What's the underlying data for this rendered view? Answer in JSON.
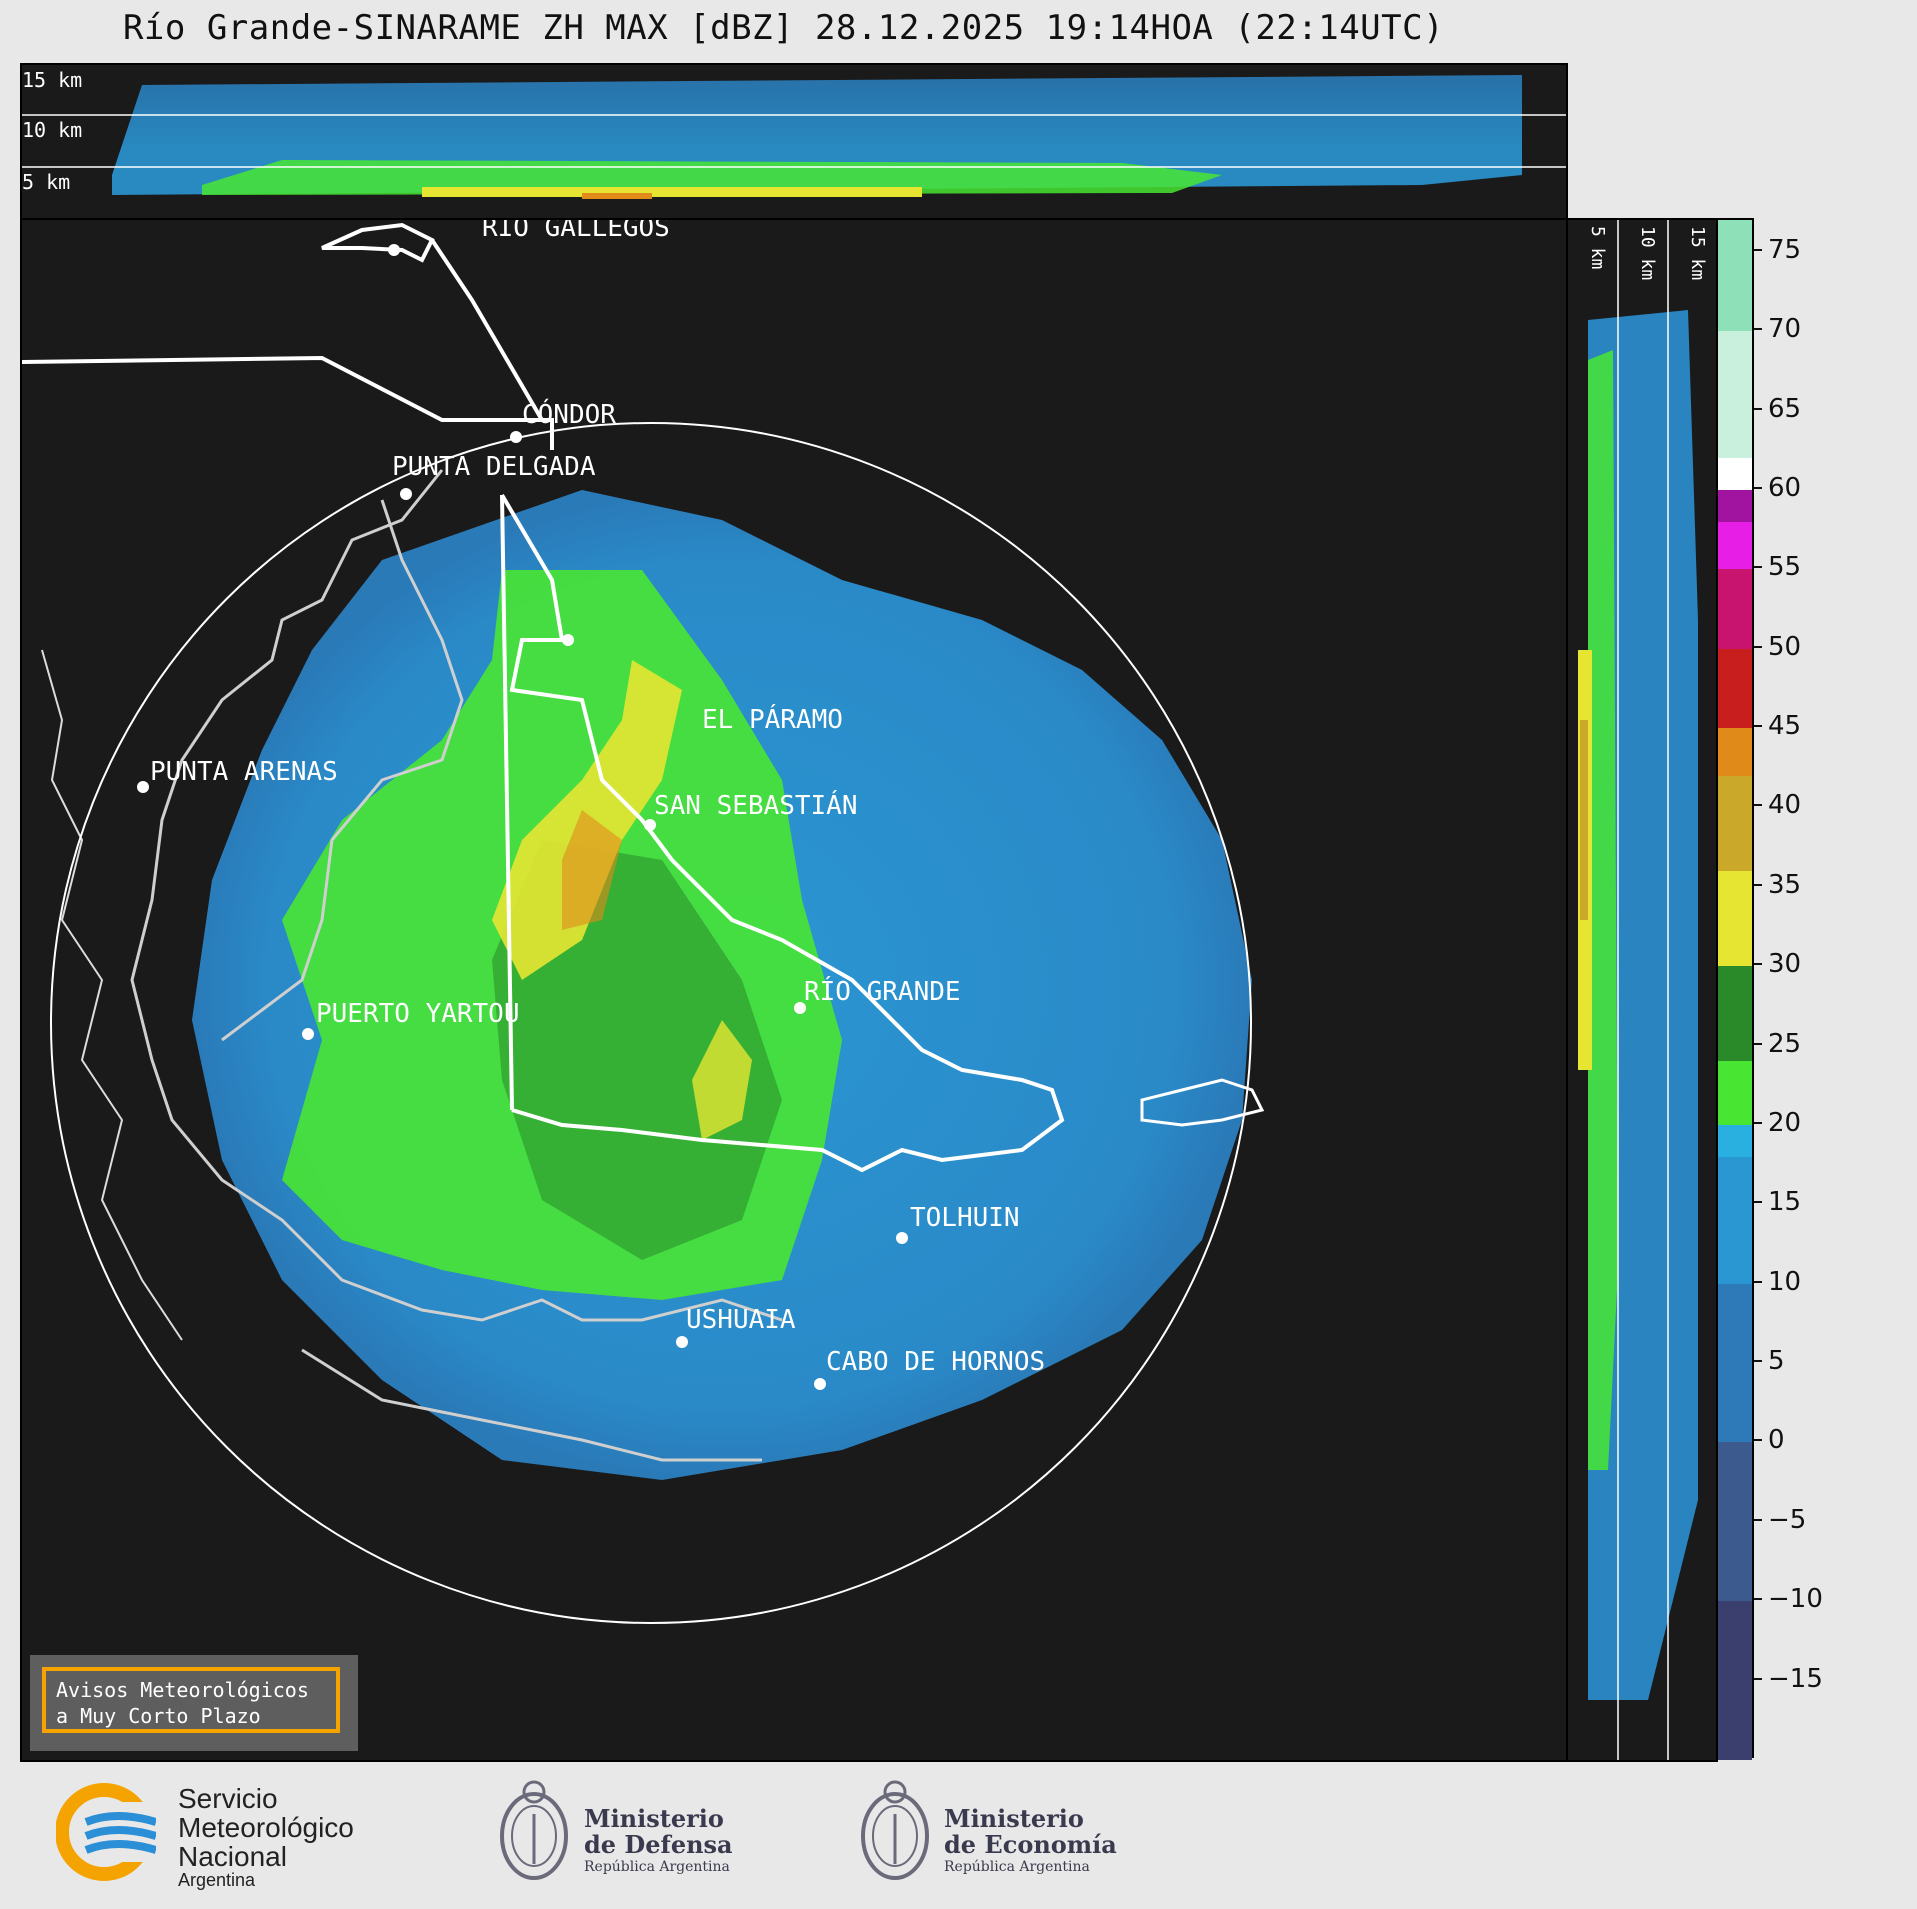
{
  "title": "Río Grande-SINARAME ZH MAX [dBZ] 28.12.2025 19:14HOA (22:14UTC)",
  "top_panel": {
    "height_labels": [
      "15 km",
      "10 km",
      "5 km"
    ]
  },
  "side_panel": {
    "height_labels": [
      "5 km",
      "10 km",
      "15 km"
    ]
  },
  "places": [
    {
      "name": "RÍO GALLEGOS"
    },
    {
      "name": "CÓNDOR"
    },
    {
      "name": "PUNTA DELGADA"
    },
    {
      "name": "PUNTA ARENAS"
    },
    {
      "name": "EL PÁRAMO"
    },
    {
      "name": "SAN SEBASTIÁN"
    },
    {
      "name": "RÍO GRANDE"
    },
    {
      "name": "PUERTO YARTOU"
    },
    {
      "name": "TOLHUIN"
    },
    {
      "name": "USHUAIA"
    },
    {
      "name": "CABO DE HORNOS"
    }
  ],
  "colorbar": {
    "unit": "dBZ",
    "range": [
      -20,
      77
    ],
    "ticks": [
      "75",
      "70",
      "65",
      "60",
      "55",
      "50",
      "45",
      "40",
      "35",
      "30",
      "25",
      "20",
      "15",
      "10",
      "5",
      "0",
      "−5",
      "−10",
      "−15"
    ],
    "bands": [
      {
        "from": -20,
        "to": -10,
        "color": "#3b3f6e"
      },
      {
        "from": -10,
        "to": 0,
        "color": "#3d5a8e"
      },
      {
        "from": 0,
        "to": 10,
        "color": "#2e7ab8"
      },
      {
        "from": 10,
        "to": 18,
        "color": "#2a96d2"
      },
      {
        "from": 18,
        "to": 20,
        "color": "#2ab0e0"
      },
      {
        "from": 20,
        "to": 24,
        "color": "#48e632"
      },
      {
        "from": 24,
        "to": 30,
        "color": "#2a8a2a"
      },
      {
        "from": 30,
        "to": 36,
        "color": "#e6e632"
      },
      {
        "from": 36,
        "to": 42,
        "color": "#c9a82a"
      },
      {
        "from": 42,
        "to": 45,
        "color": "#e08a1a"
      },
      {
        "from": 45,
        "to": 50,
        "color": "#c81e1e"
      },
      {
        "from": 50,
        "to": 55,
        "color": "#c8146e"
      },
      {
        "from": 55,
        "to": 58,
        "color": "#e61ee6"
      },
      {
        "from": 58,
        "to": 60,
        "color": "#a014a0"
      },
      {
        "from": 60,
        "to": 62,
        "color": "#ffffff"
      },
      {
        "from": 62,
        "to": 70,
        "color": "#c8f0dc"
      },
      {
        "from": 70,
        "to": 77,
        "color": "#8ee0b8"
      }
    ]
  },
  "badge": {
    "line1": "Avisos Meteorológicos",
    "line2": "a Muy Corto Plazo"
  },
  "logos": {
    "smn": {
      "line1": "Servicio",
      "line2": "Meteorológico",
      "line3": "Nacional",
      "line4": "Argentina"
    },
    "defensa": {
      "line1": "Ministerio",
      "line2": "de Defensa",
      "line3": "República Argentina"
    },
    "economia": {
      "line1": "Ministerio",
      "line2": "de Economía",
      "line3": "República Argentina"
    }
  },
  "colors": {
    "accent_badge": "#f5a300",
    "smn_blue": "#2a8fd6",
    "smn_yellow": "#f5a300",
    "panel_bg": "#1a1a1a"
  }
}
